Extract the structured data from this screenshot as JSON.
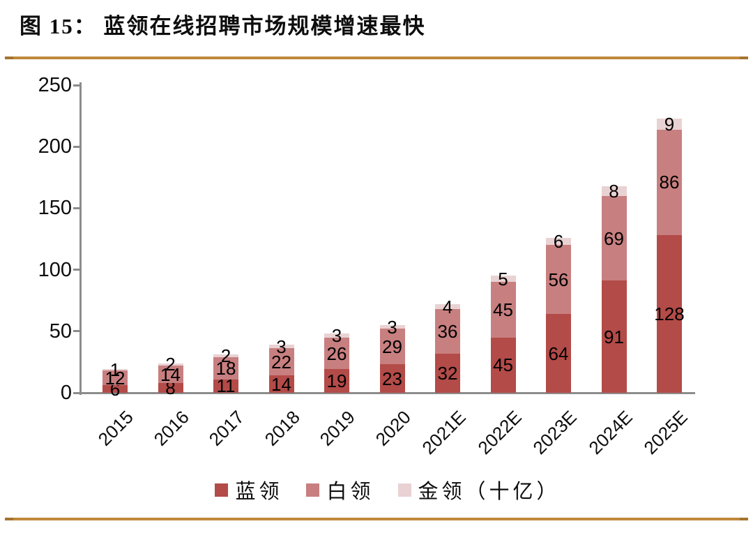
{
  "figure": {
    "title": "图 15：  蓝领在线招聘市场规模增速最快"
  },
  "colors": {
    "rule_gold": "#c0883c",
    "axis_gray": "#8c8c8c",
    "text_black": "#0d0d0d"
  },
  "chart_data": {
    "type": "bar",
    "stacked": true,
    "title": "蓝领在线招聘市场规模增速最快",
    "unit": "十亿",
    "categories": [
      "2015",
      "2016",
      "2017",
      "2018",
      "2019",
      "2020",
      "2021E",
      "2022E",
      "2023E",
      "2024E",
      "2025E"
    ],
    "series": [
      {
        "name": "蓝领",
        "color": "#b34b48",
        "values": [
          6,
          8,
          11,
          14,
          19,
          23,
          32,
          45,
          64,
          91,
          128
        ]
      },
      {
        "name": "白领",
        "color": "#c87f80",
        "values": [
          12,
          14,
          18,
          22,
          26,
          29,
          36,
          45,
          56,
          69,
          86
        ]
      },
      {
        "name": "金领",
        "color": "#e9d2d3",
        "values": [
          1,
          2,
          2,
          3,
          3,
          3,
          4,
          5,
          6,
          8,
          9
        ]
      }
    ],
    "legend": [
      "蓝领",
      "白领",
      "金领（十亿）"
    ],
    "legend_position": "bottom",
    "xlabel": "",
    "ylabel": "",
    "ylim": [
      0,
      250
    ],
    "yticks": [
      0,
      50,
      100,
      150,
      200,
      250
    ],
    "grid": false,
    "data_labels": true
  }
}
